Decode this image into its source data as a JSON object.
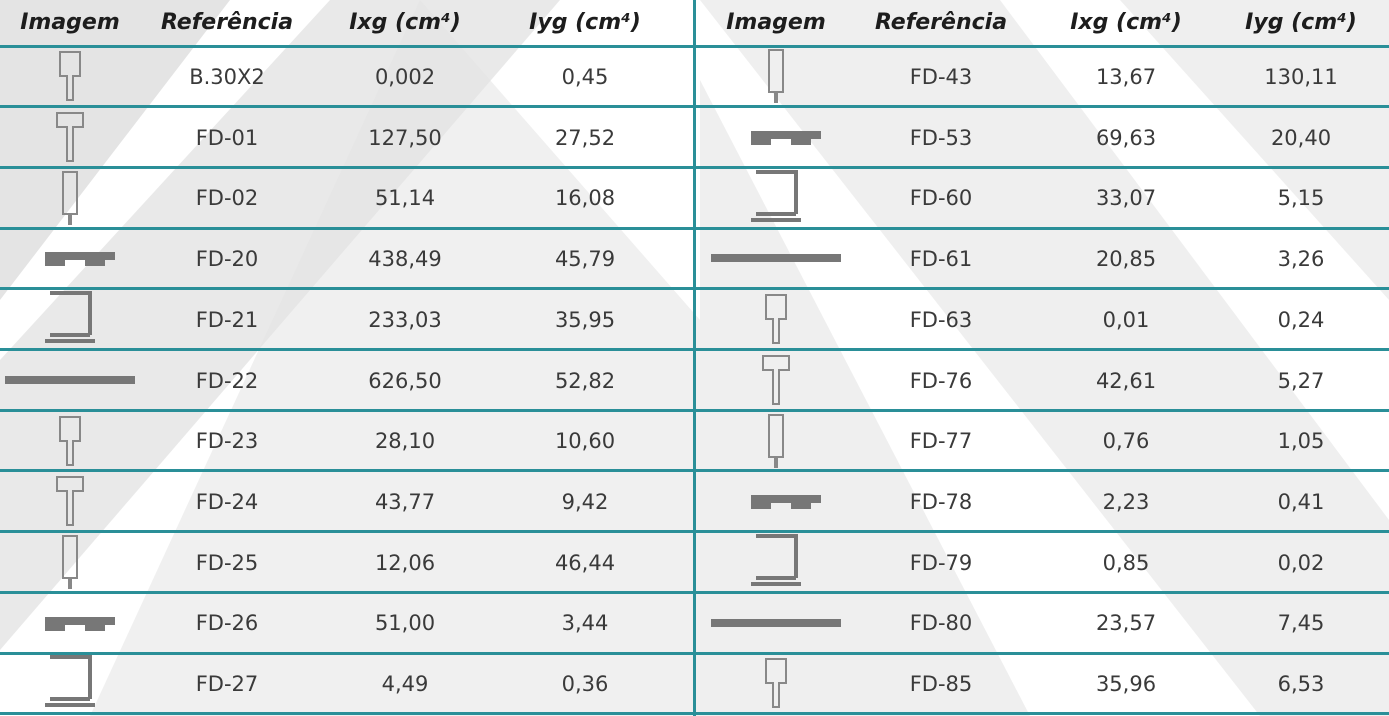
{
  "left": {
    "header": [
      "Imagem",
      "Referência",
      "Ixg (cm⁴)",
      "Iyg (cm⁴)"
    ],
    "rows": [
      [
        "B.30X2",
        "0,002",
        "0,45"
      ],
      [
        "FD-01",
        "127,50",
        "27,52"
      ],
      [
        "FD-02",
        "51,14",
        "16,08"
      ],
      [
        "FD-20",
        "438,49",
        "45,79"
      ],
      [
        "FD-21",
        "233,03",
        "35,95"
      ],
      [
        "FD-22",
        "626,50",
        "52,82"
      ],
      [
        "FD-23",
        "28,10",
        "10,60"
      ],
      [
        "FD-24",
        "43,77",
        "9,42"
      ],
      [
        "FD-25",
        "12,06",
        "46,44"
      ],
      [
        "FD-26",
        "51,00",
        "3,44"
      ],
      [
        "FD-27",
        "4,49",
        "0,36"
      ]
    ]
  },
  "right": {
    "header": [
      "Imagem",
      "Referência",
      "Ixg (cm⁴)",
      "Iyg (cm⁴)"
    ],
    "rows": [
      [
        "FD-43",
        "13,67",
        "130,11"
      ],
      [
        "FD-53",
        "69,63",
        "20,40"
      ],
      [
        "FD-60",
        "33,07",
        "5,15"
      ],
      [
        "FD-61",
        "20,85",
        "3,26"
      ],
      [
        "FD-63",
        "0,01",
        "0,24"
      ],
      [
        "FD-76",
        "42,61",
        "5,27"
      ],
      [
        "FD-77",
        "0,76",
        "1,05"
      ],
      [
        "FD-78",
        "2,23",
        "0,41"
      ],
      [
        "FD-79",
        "0,85",
        "0,02"
      ],
      [
        "FD-80",
        "23,57",
        "7,45"
      ],
      [
        "FD-85",
        "35,96",
        "6,53"
      ]
    ]
  }
}
